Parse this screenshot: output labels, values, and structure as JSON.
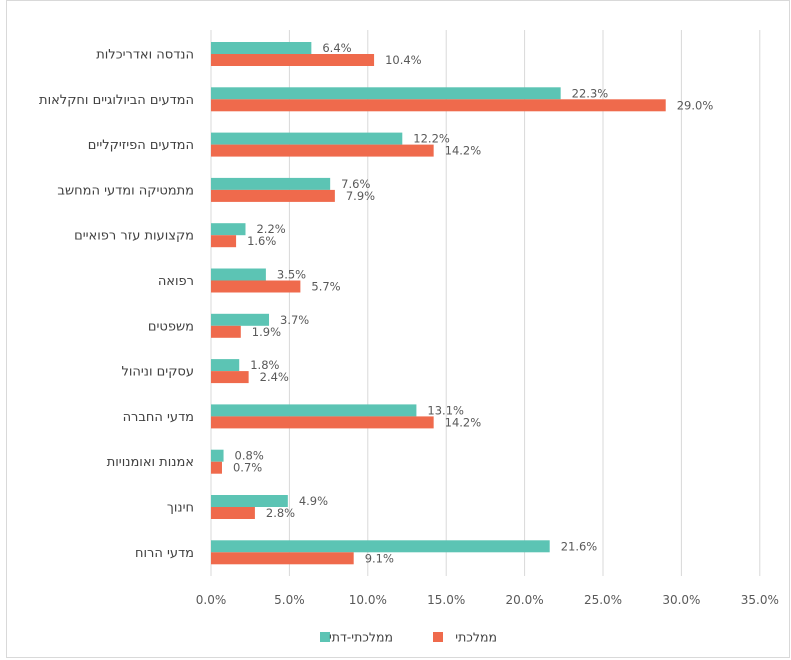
{
  "chart_data": {
    "type": "bar",
    "orientation": "horizontal",
    "categories": [
      "הנדסה ואדריכלות",
      "המדעים הביולוגיים וחקלאות",
      "המדעים הפיזיקליים",
      "מתמטיקה ומדעי המחשב",
      "מקצועות עזר רפואיים",
      "רפואה",
      "משפטים",
      "עסקים וניהול",
      "מדעי החברה",
      "אמנות ואומנויות",
      "חינוך",
      "מדעי הרוח"
    ],
    "series": [
      {
        "name": "ממלכתי-דתי",
        "color": "#5cc4b4",
        "values": [
          6.4,
          22.3,
          12.2,
          7.6,
          2.2,
          3.5,
          3.7,
          1.8,
          13.1,
          0.8,
          4.9,
          21.6
        ],
        "labels": [
          "6.4%",
          "22.3%",
          "12.2%",
          "7.6%",
          "2.2%",
          "3.5%",
          "3.7%",
          "1.8%",
          "13.1%",
          "0.8%",
          "4.9%",
          "21.6%"
        ]
      },
      {
        "name": "ממלכתי",
        "color": "#ef6a4c",
        "values": [
          10.4,
          29.0,
          14.2,
          7.9,
          1.6,
          5.7,
          1.9,
          2.4,
          14.2,
          0.7,
          2.8,
          9.1
        ],
        "labels": [
          "10.4%",
          "29.0%",
          "14.2%",
          "7.9%",
          "1.6%",
          "5.7%",
          "1.9%",
          "2.4%",
          "14.2%",
          "0.7%",
          "2.8%",
          "9.1%"
        ]
      }
    ],
    "xlim": [
      0,
      35
    ],
    "x_ticks": [
      "0.0%",
      "5.0%",
      "10.0%",
      "15.0%",
      "20.0%",
      "25.0%",
      "30.0%",
      "35.0%"
    ],
    "grid": true,
    "legend_position": "bottom",
    "legend": [
      "ממלכתי-דתי",
      "ממלכתי"
    ]
  }
}
